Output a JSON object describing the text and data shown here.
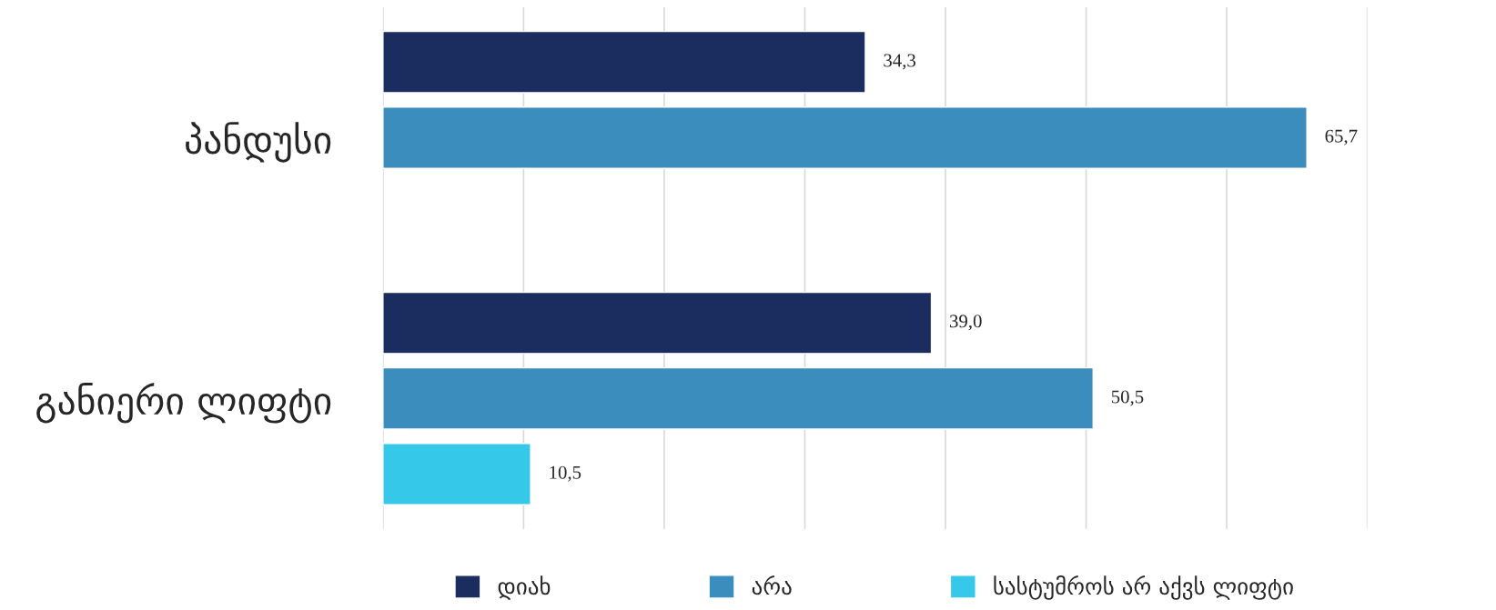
{
  "chart_data": {
    "type": "bar",
    "orientation": "horizontal",
    "categories": [
      "პანდუსი",
      "განიერი ლიფტი"
    ],
    "series": [
      {
        "name": "დიახ",
        "color": "#1a2d5e",
        "values": [
          34.3,
          39.0
        ],
        "value_labels": [
          "34,3",
          "39,0"
        ]
      },
      {
        "name": "არა",
        "color": "#3a8dbd",
        "values": [
          65.7,
          50.5
        ],
        "value_labels": [
          "65,7",
          "50,5"
        ]
      },
      {
        "name": "სასტუმროს არ აქვს ლიფტი",
        "color": "#36c8e8",
        "values": [
          null,
          10.5
        ],
        "value_labels": [
          null,
          "10,5"
        ]
      }
    ],
    "xlim": [
      0,
      70
    ],
    "xticks": [
      {
        "value": 0,
        "label": null
      },
      {
        "value": 10,
        "label": null
      },
      {
        "value": 20,
        "label": null
      },
      {
        "value": 30,
        "label": null
      },
      {
        "value": 40,
        "label": null
      },
      {
        "value": 50,
        "label": null
      },
      {
        "value": 60,
        "label": null
      },
      {
        "value": 70,
        "label": null
      }
    ],
    "tick_labels": "y",
    "grid": "x",
    "legend": "bottom"
  }
}
